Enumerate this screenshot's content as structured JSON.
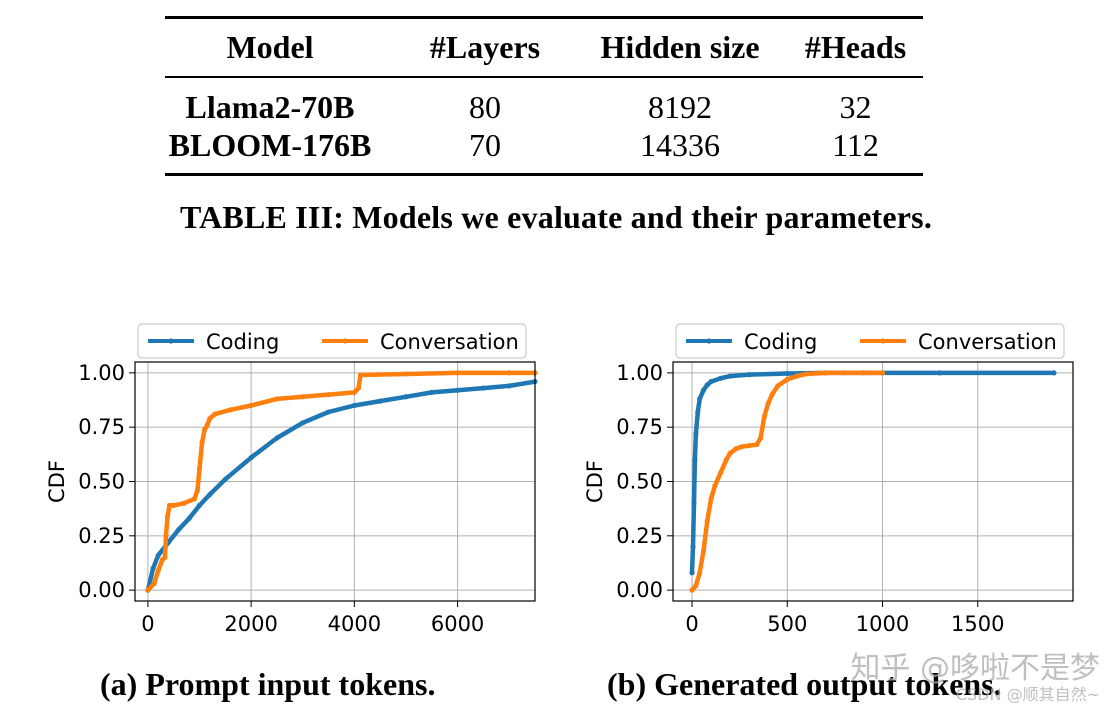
{
  "table": {
    "headers": [
      "Model",
      "#Layers",
      "Hidden size",
      "#Heads"
    ],
    "rows": [
      [
        "Llama2-70B",
        "80",
        "8192",
        "32"
      ],
      [
        "BLOOM-176B",
        "70",
        "14336",
        "112"
      ]
    ],
    "caption": "TABLE III: Models we evaluate and their parameters."
  },
  "chart_data": [
    {
      "type": "line",
      "caption": "(a) Prompt input tokens.",
      "ylabel": "CDF",
      "xlabel": "",
      "xlim": [
        -250,
        7500
      ],
      "ylim": [
        -0.05,
        1.05
      ],
      "xticks": [
        0,
        2000,
        4000,
        6000
      ],
      "xtick_labels": [
        "0",
        "2000",
        "4000",
        "6000"
      ],
      "yticks": [
        0.0,
        0.25,
        0.5,
        0.75,
        1.0
      ],
      "ytick_labels": [
        "0.00",
        "0.25",
        "0.50",
        "0.75",
        "1.00"
      ],
      "grid": true,
      "legend_position": "top (above plot)",
      "series": [
        {
          "name": "Coding",
          "color": "#1f77b4",
          "x": [
            0,
            100,
            200,
            400,
            600,
            800,
            1000,
            1200,
            1500,
            2000,
            2500,
            3000,
            3500,
            4000,
            4500,
            5000,
            5500,
            6000,
            6500,
            7000,
            7500
          ],
          "y": [
            0.0,
            0.1,
            0.16,
            0.22,
            0.28,
            0.33,
            0.39,
            0.44,
            0.51,
            0.61,
            0.7,
            0.77,
            0.82,
            0.85,
            0.87,
            0.89,
            0.91,
            0.92,
            0.93,
            0.94,
            0.96
          ]
        },
        {
          "name": "Conversation",
          "color": "#ff7f0e",
          "x": [
            0,
            120,
            200,
            280,
            330,
            350,
            380,
            420,
            500,
            700,
            900,
            960,
            1000,
            1050,
            1100,
            1150,
            1200,
            1300,
            1600,
            2000,
            2500,
            3000,
            3500,
            4000,
            4080,
            4120,
            5000,
            6000,
            7000,
            7500
          ],
          "y": [
            0.0,
            0.03,
            0.09,
            0.14,
            0.15,
            0.25,
            0.34,
            0.39,
            0.39,
            0.4,
            0.42,
            0.46,
            0.56,
            0.68,
            0.74,
            0.76,
            0.79,
            0.81,
            0.83,
            0.85,
            0.88,
            0.89,
            0.9,
            0.91,
            0.93,
            0.99,
            0.995,
            1.0,
            1.0,
            1.0
          ]
        }
      ]
    },
    {
      "type": "line",
      "caption": "(b) Generated output tokens.",
      "ylabel": "CDF",
      "xlabel": "",
      "xlim": [
        -100,
        2000
      ],
      "ylim": [
        -0.05,
        1.05
      ],
      "xticks": [
        0,
        500,
        1000,
        1500
      ],
      "xtick_labels": [
        "0",
        "500",
        "1000",
        "1500"
      ],
      "yticks": [
        0.0,
        0.25,
        0.5,
        0.75,
        1.0
      ],
      "ytick_labels": [
        "0.00",
        "0.25",
        "0.50",
        "0.75",
        "1.00"
      ],
      "grid": true,
      "legend_position": "top (above plot)",
      "series": [
        {
          "name": "Coding",
          "color": "#1f77b4",
          "x": [
            0,
            5,
            10,
            15,
            20,
            30,
            40,
            60,
            80,
            100,
            150,
            200,
            300,
            500,
            700,
            1000,
            1300,
            1900
          ],
          "y": [
            0.08,
            0.2,
            0.4,
            0.6,
            0.72,
            0.82,
            0.88,
            0.92,
            0.945,
            0.96,
            0.975,
            0.985,
            0.992,
            0.997,
            1.0,
            1.0,
            1.0,
            1.0
          ]
        },
        {
          "name": "Conversation",
          "color": "#ff7f0e",
          "x": [
            0,
            20,
            40,
            60,
            80,
            100,
            120,
            150,
            180,
            200,
            230,
            260,
            300,
            340,
            360,
            380,
            400,
            420,
            450,
            500,
            550,
            600,
            700,
            800,
            900,
            1000
          ],
          "y": [
            0.0,
            0.02,
            0.08,
            0.18,
            0.32,
            0.42,
            0.48,
            0.54,
            0.6,
            0.63,
            0.65,
            0.66,
            0.665,
            0.67,
            0.7,
            0.8,
            0.86,
            0.9,
            0.94,
            0.97,
            0.985,
            0.995,
            1.0,
            1.0,
            1.0,
            1.0
          ]
        }
      ]
    }
  ],
  "watermark": {
    "line1": "知乎 @哆啦不是梦",
    "line2": "CSDN @顺其自然~"
  }
}
